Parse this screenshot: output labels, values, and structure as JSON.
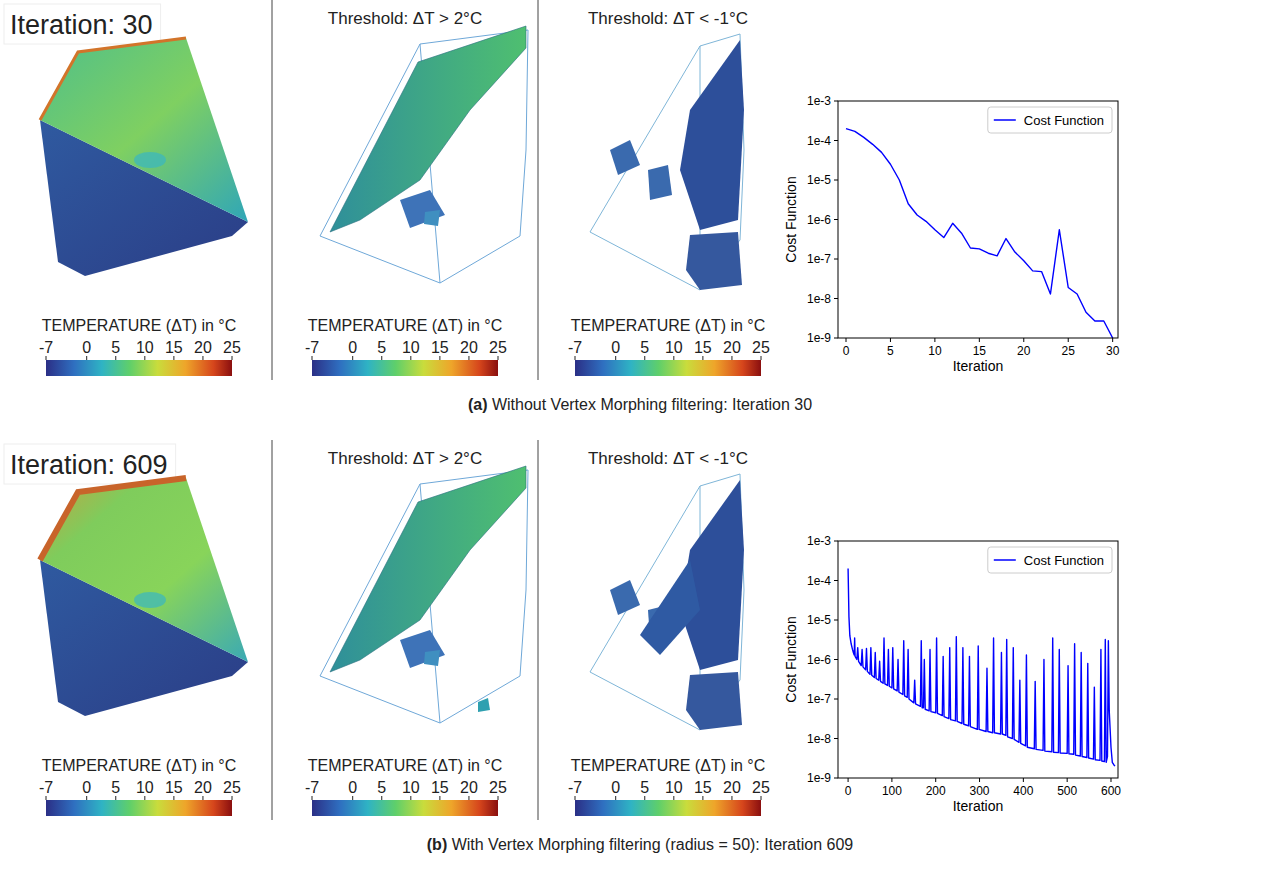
{
  "chart_data": [
    {
      "type": "line",
      "x_label": "Iteration",
      "y_label": "Cost Function",
      "x": [
        0,
        1,
        2,
        3,
        4,
        5,
        6,
        7,
        8,
        9,
        10,
        11,
        12,
        13,
        14,
        15,
        16,
        17,
        18,
        19,
        20,
        21,
        22,
        23,
        24,
        25,
        26,
        27,
        28,
        29,
        30
      ],
      "series": [
        {
          "name": "Cost Function",
          "color": "#0000ff",
          "values": [
            0.0002,
            0.00017,
            0.00012,
            8e-05,
            5e-05,
            2.5e-05,
            1e-05,
            2.5e-06,
            1.3e-06,
            9e-07,
            5.5e-07,
            3.5e-07,
            8e-07,
            4.5e-07,
            1.9e-07,
            1.8e-07,
            1.4e-07,
            1.2e-07,
            3.3e-07,
            1.5e-07,
            9e-08,
            5e-08,
            4.8e-08,
            1.3e-08,
            5.5e-07,
            1.9e-08,
            1.3e-08,
            4.5e-09,
            2.7e-09,
            2.7e-09,
            1e-09
          ]
        }
      ],
      "xlim": [
        -0.9,
        30.6
      ],
      "ylim": [
        1e-09,
        0.001
      ],
      "xticks": [
        0,
        5,
        10,
        15,
        20,
        25,
        30
      ],
      "yticks": [
        {
          "value": 1e-09,
          "label": "1e-9"
        },
        {
          "value": 1e-08,
          "label": "1e-8"
        },
        {
          "value": 1e-07,
          "label": "1e-7"
        },
        {
          "value": 1e-06,
          "label": "1e-6"
        },
        {
          "value": 1e-05,
          "label": "1e-5"
        },
        {
          "value": 0.0001,
          "label": "1e-4"
        },
        {
          "value": 0.001,
          "label": "1e-3"
        }
      ],
      "log": "y",
      "grid": false,
      "legend": "upper right"
    },
    {
      "type": "line",
      "x_label": "Iteration",
      "y_label": "Cost Function",
      "x": [
        0,
        2,
        4,
        7,
        10,
        12,
        14,
        15,
        16,
        20,
        22,
        24,
        30,
        32,
        34,
        40,
        42,
        44,
        50,
        52,
        54,
        60,
        62,
        64,
        70,
        72,
        74,
        80,
        82,
        84,
        90,
        92,
        94,
        100,
        102,
        104,
        112,
        114,
        116,
        125,
        127,
        129,
        135,
        137,
        139,
        150,
        152,
        154,
        165,
        167,
        169,
        172,
        174,
        176,
        185,
        187,
        189,
        200,
        202,
        204,
        215,
        217,
        219,
        230,
        232,
        234,
        245,
        247,
        249,
        260,
        262,
        264,
        275,
        277,
        279,
        295,
        297,
        299,
        315,
        317,
        319,
        330,
        332,
        334,
        348,
        350,
        352,
        360,
        362,
        364,
        375,
        377,
        379,
        390,
        392,
        394,
        405,
        407,
        409,
        425,
        427,
        429,
        445,
        447,
        449,
        465,
        467,
        469,
        480,
        482,
        484,
        500,
        502,
        504,
        515,
        517,
        519,
        530,
        532,
        534,
        545,
        547,
        549,
        560,
        562,
        564,
        575,
        577,
        579,
        585,
        587,
        589,
        592,
        594,
        596,
        600,
        603,
        606,
        609
      ],
      "series": [
        {
          "name": "Cost Function",
          "color": "#0000ff",
          "values": [
            0.0002,
            1.2e-05,
            4e-06,
            2.5e-06,
            1.8e-06,
            1.5e-06,
            1.3e-06,
            3.5e-06,
            1.2e-06,
            1e-06,
            2e-06,
            9e-07,
            7e-07,
            1.8e-06,
            6.5e-07,
            5.5e-07,
            1.9e-06,
            5e-07,
            4.2e-07,
            2e-06,
            4e-07,
            3.5e-07,
            1.5e-06,
            3.3e-07,
            3e-07,
            9e-07,
            2.8e-07,
            2.5e-07,
            3.5e-06,
            2.4e-07,
            2.2e-07,
            1.8e-06,
            2.1e-07,
            1.9e-07,
            2e-06,
            1.8e-07,
            1.6e-07,
            1e-06,
            1.5e-07,
            1.3e-07,
            3e-06,
            1.2e-07,
            1.1e-07,
            1.8e-06,
            1e-07,
            8e-08,
            3e-07,
            7.5e-08,
            6.5e-08,
            3e-06,
            6e-08,
            6e-08,
            1e-06,
            5.5e-08,
            5e-08,
            1.8e-06,
            4.8e-08,
            4.5e-08,
            3.5e-06,
            4.3e-08,
            3.8e-08,
            1.2e-06,
            3.6e-08,
            3.2e-08,
            2e-06,
            3e-08,
            2.8e-08,
            3.8e-06,
            2.7e-08,
            2.4e-08,
            2e-06,
            2.3e-08,
            2.1e-08,
            1.2e-06,
            2e-08,
            1.7e-08,
            2.2e-06,
            1.7e-08,
            1.5e-08,
            6e-07,
            1.5e-08,
            1.4e-08,
            3.5e-06,
            1.4e-08,
            1.3e-08,
            1.5e-06,
            1.3e-08,
            1.2e-08,
            3.2e-06,
            1.1e-08,
            1e-08,
            2e-06,
            9.5e-09,
            8e-09,
            3e-07,
            7.5e-09,
            6.5e-09,
            1.3e-06,
            6e-09,
            5.5e-09,
            2.8e-07,
            5.3e-09,
            5e-09,
            1e-06,
            4.8e-09,
            4.6e-09,
            3.5e-06,
            4.5e-09,
            4.4e-09,
            1.8e-06,
            4.3e-09,
            4.2e-09,
            7e-07,
            4.1e-09,
            4e-09,
            2.5e-06,
            3.8e-09,
            3.6e-09,
            1.5e-06,
            3.5e-09,
            3.3e-09,
            8e-07,
            3.2e-09,
            3e-09,
            2e-07,
            2.9e-09,
            2.8e-09,
            1.8e-06,
            2.7e-09,
            2.6e-09,
            3.2e-06,
            2.5e-09,
            3.5e-09,
            3e-06,
            5e-08,
            6e-09,
            2.5e-09,
            2.2e-09,
            2e-09
          ]
        }
      ],
      "xlim": [
        -23,
        616
      ],
      "ylim": [
        1e-09,
        0.001
      ],
      "xticks": [
        0,
        100,
        200,
        300,
        400,
        500,
        600
      ],
      "yticks": [
        {
          "value": 1e-09,
          "label": "1e-9"
        },
        {
          "value": 1e-08,
          "label": "1e-8"
        },
        {
          "value": 1e-07,
          "label": "1e-7"
        },
        {
          "value": 1e-06,
          "label": "1e-6"
        },
        {
          "value": 1e-05,
          "label": "1e-5"
        },
        {
          "value": 0.0001,
          "label": "1e-4"
        },
        {
          "value": 0.001,
          "label": "1e-3"
        }
      ],
      "log": "y",
      "grid": false,
      "legend": "upper right"
    }
  ],
  "figure": {
    "rows": [
      {
        "iteration_label": "Iteration: 30",
        "thresholds": [
          "Threshold: ΔT > 2°C",
          "Threshold: ΔT < -1°C"
        ],
        "colorbar": {
          "label": "TEMPERATURE (ΔT) in °C",
          "range": [
            -7,
            25
          ],
          "ticks": [
            -7,
            0,
            5,
            10,
            15,
            20,
            25
          ]
        },
        "caption_label": "(a)",
        "caption": "Without Vertex Morphing filtering: Iteration 30"
      },
      {
        "iteration_label": "Iteration: 609",
        "thresholds": [
          "Threshold: ΔT > 2°C",
          "Threshold: ΔT < -1°C"
        ],
        "colorbar": {
          "label": "TEMPERATURE (ΔT) in °C",
          "range": [
            -7,
            25
          ],
          "ticks": [
            -7,
            0,
            5,
            10,
            15,
            20,
            25
          ]
        },
        "caption_label": "(b)",
        "caption": "With Vertex Morphing filtering (radius = 50): Iteration 609"
      }
    ]
  }
}
